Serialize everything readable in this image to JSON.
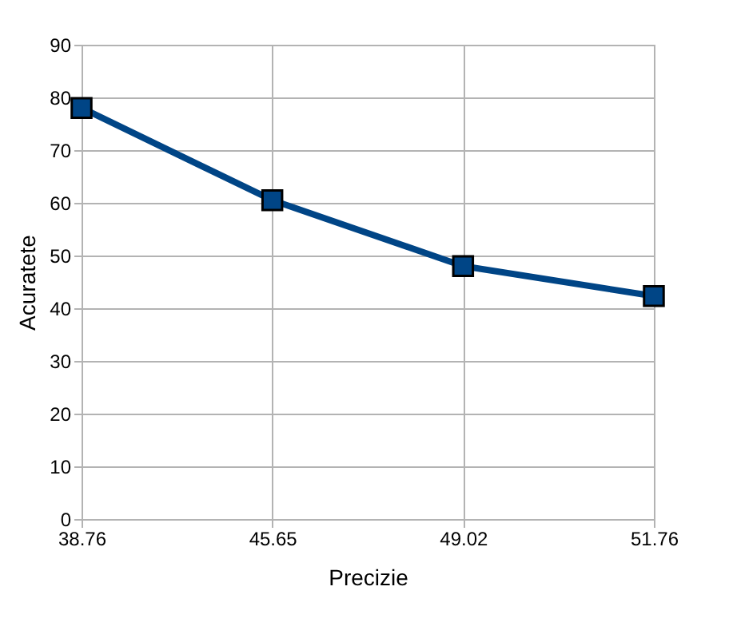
{
  "chart_data": {
    "type": "line",
    "xlabel": "Precizie",
    "ylabel": "Acuratete",
    "categories": [
      "38.76",
      "45.65",
      "49.02",
      "51.76"
    ],
    "series": [
      {
        "color": "#004586",
        "values": [
          78,
          60.5,
          48,
          42.3
        ]
      }
    ],
    "ylim": [
      0,
      90
    ],
    "yticks": [
      0,
      10,
      20,
      30,
      40,
      50,
      60,
      70,
      80,
      90
    ],
    "grid": true,
    "marker": "square",
    "line_style": "solid"
  }
}
